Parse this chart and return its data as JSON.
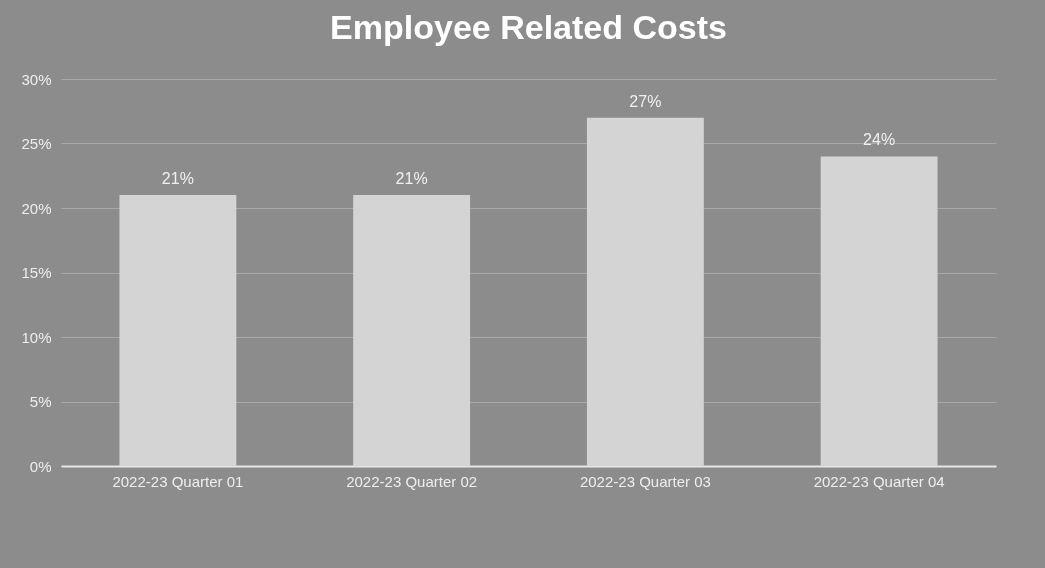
{
  "chart_data": {
    "type": "bar",
    "title": "Employee Related Costs",
    "categories": [
      "2022-23 Quarter 01",
      "2022-23 Quarter 02",
      "2022-23 Quarter 03",
      "2022-23 Quarter 04"
    ],
    "values": [
      21,
      21,
      27,
      24
    ],
    "value_labels": [
      "21%",
      "21%",
      "27%",
      "24%"
    ],
    "color": "#d4d4d4",
    "ylim": [
      0,
      30
    ],
    "yticks": [
      {
        "value": 0,
        "label": "0%"
      },
      {
        "value": 5,
        "label": "5%"
      },
      {
        "value": 10,
        "label": "10%"
      },
      {
        "value": 15,
        "label": "15%"
      },
      {
        "value": 20,
        "label": "20%"
      },
      {
        "value": 25,
        "label": "25%"
      },
      {
        "value": 30,
        "label": "30%"
      }
    ],
    "grid": "y"
  }
}
